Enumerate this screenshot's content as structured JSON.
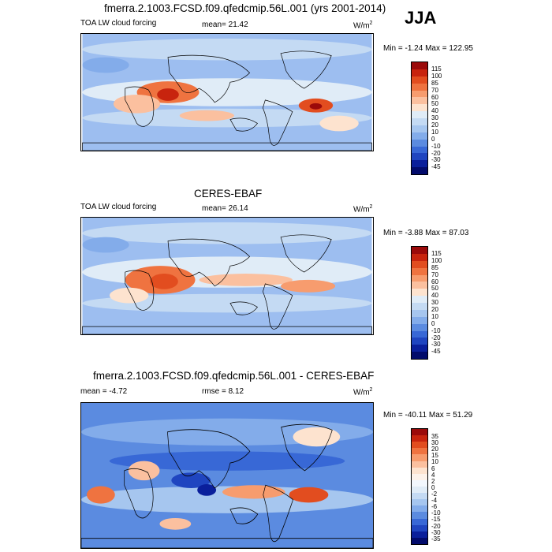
{
  "season": "JJA",
  "panels": [
    {
      "title": "fmerra.2.1003.FCSD.f09.qfedcmip.56L.001 (yrs 2001-2014)",
      "left_label": "TOA LW cloud forcing",
      "center_label": "mean=  21.42",
      "units": "W/m",
      "units_exp": "2",
      "minmax": "Min =  -1.24 Max = 122.95",
      "levels": [
        "115",
        "100",
        "85",
        "70",
        "60",
        "50",
        "40",
        "30",
        "20",
        "10",
        "0",
        "-10",
        "-20",
        "-30",
        "-45"
      ],
      "colors": [
        "#9b0a0a",
        "#c8240e",
        "#e24d1f",
        "#ef7340",
        "#f79c6e",
        "#fbc09f",
        "#fde3cf",
        "#e0ecf7",
        "#c4daf3",
        "#a6c6ef",
        "#83acea",
        "#5b8be0",
        "#3868d6",
        "#1f45c0",
        "#0a1f9b",
        "#020b6b"
      ]
    },
    {
      "title": "CERES-EBAF",
      "left_label": "TOA LW cloud forcing",
      "center_label": "mean=  26.14",
      "units": "W/m",
      "units_exp": "2",
      "minmax": "Min =  -3.88 Max =  87.03",
      "levels": [
        "115",
        "100",
        "85",
        "70",
        "60",
        "50",
        "40",
        "30",
        "20",
        "10",
        "0",
        "-10",
        "-20",
        "-30",
        "-45"
      ],
      "colors": [
        "#9b0a0a",
        "#c8240e",
        "#e24d1f",
        "#ef7340",
        "#f79c6e",
        "#fbc09f",
        "#fde3cf",
        "#e0ecf7",
        "#c4daf3",
        "#a6c6ef",
        "#83acea",
        "#5b8be0",
        "#3868d6",
        "#1f45c0",
        "#0a1f9b",
        "#020b6b"
      ]
    },
    {
      "title": "fmerra.2.1003.FCSD.f09.qfedcmip.56L.001 - CERES-EBAF",
      "left_label": "mean =  -4.72",
      "center_label": "rmse =   8.12",
      "units": "W/m",
      "units_exp": "2",
      "minmax": "Min = -40.11 Max =  51.29",
      "levels": [
        "35",
        "30",
        "20",
        "15",
        "10",
        "6",
        "4",
        "2",
        "0",
        "-2",
        "-4",
        "-6",
        "-10",
        "-15",
        "-20",
        "-30",
        "-35"
      ],
      "colors": [
        "#9b0a0a",
        "#c8240e",
        "#e24d1f",
        "#ef7340",
        "#f79c6e",
        "#fbc09f",
        "#fde3cf",
        "#fdf2ea",
        "#f2f7fd",
        "#e0ecf7",
        "#c4daf3",
        "#a6c6ef",
        "#83acea",
        "#5b8be0",
        "#3868d6",
        "#1f45c0",
        "#0a1f9b",
        "#020b6b"
      ]
    }
  ]
}
